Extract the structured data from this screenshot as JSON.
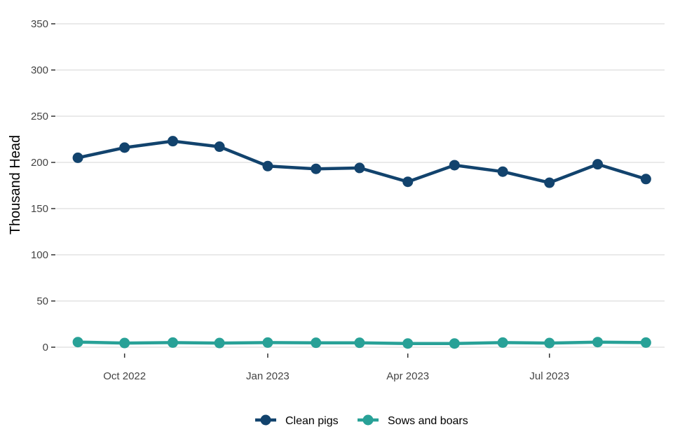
{
  "chart_data": {
    "type": "line",
    "title": "",
    "xlabel": "",
    "ylabel": "Thousand Head",
    "x": [
      "2022-09-01",
      "2022-10-01",
      "2022-11-01",
      "2022-12-01",
      "2023-01-01",
      "2023-02-01",
      "2023-03-01",
      "2023-04-01",
      "2023-05-01",
      "2023-06-01",
      "2023-07-01",
      "2023-08-01",
      "2023-09-01"
    ],
    "x_ticks": [
      {
        "date": "2022-10-01",
        "label": "Oct 2022"
      },
      {
        "date": "2023-01-01",
        "label": "Jan 2023"
      },
      {
        "date": "2023-04-01",
        "label": "Apr 2023"
      },
      {
        "date": "2023-07-01",
        "label": "Jul 2023"
      }
    ],
    "ylim": [
      0,
      350
    ],
    "y_ticks": [
      0,
      50,
      100,
      150,
      200,
      250,
      300,
      350
    ],
    "grid": true,
    "legend_position": "bottom",
    "series": [
      {
        "name": "Clean pigs",
        "color": "#12436D",
        "values": [
          205,
          216,
          223,
          217,
          196,
          193,
          194,
          179,
          197,
          190,
          178,
          198,
          182
        ]
      },
      {
        "name": "Sows and boars",
        "color": "#28A197",
        "values": [
          5.5,
          4.5,
          5,
          4.5,
          5,
          4.8,
          4.8,
          4,
          4,
          5,
          4.5,
          5.5,
          5
        ]
      }
    ]
  }
}
